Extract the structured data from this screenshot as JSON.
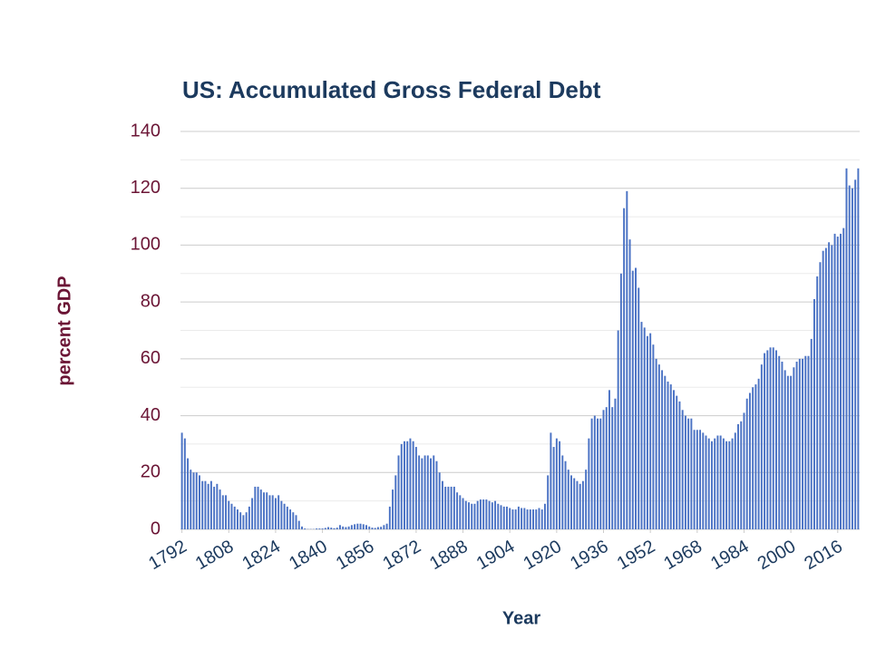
{
  "chart_data": {
    "type": "bar",
    "title": "US: Accumulated Gross Federal Debt",
    "x_label": "Year",
    "y_label": "percent GDP",
    "color": "#4a72c4",
    "x": [
      1792,
      1793,
      1794,
      1795,
      1796,
      1797,
      1798,
      1799,
      1800,
      1801,
      1802,
      1803,
      1804,
      1805,
      1806,
      1807,
      1808,
      1809,
      1810,
      1811,
      1812,
      1813,
      1814,
      1815,
      1816,
      1817,
      1818,
      1819,
      1820,
      1821,
      1822,
      1823,
      1824,
      1825,
      1826,
      1827,
      1828,
      1829,
      1830,
      1831,
      1832,
      1833,
      1834,
      1835,
      1836,
      1837,
      1838,
      1839,
      1840,
      1841,
      1842,
      1843,
      1844,
      1845,
      1846,
      1847,
      1848,
      1849,
      1850,
      1851,
      1852,
      1853,
      1854,
      1855,
      1856,
      1857,
      1858,
      1859,
      1860,
      1861,
      1862,
      1863,
      1864,
      1865,
      1866,
      1867,
      1868,
      1869,
      1870,
      1871,
      1872,
      1873,
      1874,
      1875,
      1876,
      1877,
      1878,
      1879,
      1880,
      1881,
      1882,
      1883,
      1884,
      1885,
      1886,
      1887,
      1888,
      1889,
      1890,
      1891,
      1892,
      1893,
      1894,
      1895,
      1896,
      1897,
      1898,
      1899,
      1900,
      1901,
      1902,
      1903,
      1904,
      1905,
      1906,
      1907,
      1908,
      1909,
      1910,
      1911,
      1912,
      1913,
      1914,
      1915,
      1916,
      1917,
      1918,
      1919,
      1920,
      1921,
      1922,
      1923,
      1924,
      1925,
      1926,
      1927,
      1928,
      1929,
      1930,
      1931,
      1932,
      1933,
      1934,
      1935,
      1936,
      1937,
      1938,
      1939,
      1940,
      1941,
      1942,
      1943,
      1944,
      1945,
      1946,
      1947,
      1948,
      1949,
      1950,
      1951,
      1952,
      1953,
      1954,
      1955,
      1956,
      1957,
      1958,
      1959,
      1960,
      1961,
      1962,
      1963,
      1964,
      1965,
      1966,
      1967,
      1968,
      1969,
      1970,
      1971,
      1972,
      1973,
      1974,
      1975,
      1976,
      1977,
      1978,
      1979,
      1980,
      1981,
      1982,
      1983,
      1984,
      1985,
      1986,
      1987,
      1988,
      1989,
      1990,
      1991,
      1992,
      1993,
      1994,
      1995,
      1996,
      1997,
      1998,
      1999,
      2000,
      2001,
      2002,
      2003,
      2004,
      2005,
      2006,
      2007,
      2008,
      2009,
      2010,
      2011,
      2012,
      2013,
      2014,
      2015,
      2016,
      2017,
      2018,
      2019,
      2020,
      2021,
      2022,
      2023
    ],
    "values": [
      34,
      32,
      25,
      21,
      20,
      20,
      19,
      17,
      17,
      16,
      17,
      15,
      16,
      14,
      12,
      12,
      10,
      9,
      8,
      7,
      6,
      5,
      6,
      8,
      11,
      15,
      15,
      14,
      13,
      13,
      12,
      12,
      11,
      12,
      10,
      9,
      8,
      7,
      6,
      5,
      3,
      1,
      0.3,
      0.1,
      0.1,
      0.1,
      0.3,
      0.3,
      0.3,
      0.5,
      0.8,
      0.6,
      0.4,
      0.6,
      1.5,
      1,
      0.8,
      1,
      1.5,
      1.8,
      2,
      2,
      1.8,
      1.5,
      1,
      0.6,
      0.5,
      0.8,
      0.9,
      1.5,
      2,
      8,
      14,
      19,
      26,
      30,
      31,
      31,
      32,
      31,
      29,
      26,
      25,
      26,
      26,
      25,
      26,
      24,
      20,
      17,
      15,
      15,
      15,
      15,
      13,
      12,
      11,
      10,
      9.5,
      9,
      9,
      10,
      10.5,
      10.5,
      10.5,
      10,
      9.5,
      10,
      9,
      8.5,
      8,
      8,
      7.5,
      7,
      7,
      8,
      7.5,
      7.5,
      7,
      7,
      7,
      7,
      7.5,
      7,
      9,
      19,
      34,
      29,
      32,
      31,
      26,
      24,
      21,
      19,
      18,
      17,
      16,
      17,
      21,
      32,
      39,
      40,
      39,
      39,
      42,
      43,
      49,
      43,
      46,
      70,
      90,
      113,
      119,
      102,
      91,
      92,
      85,
      73,
      71,
      68,
      69,
      65,
      60,
      58,
      56,
      54,
      52,
      51,
      49,
      47,
      45,
      42,
      40,
      39,
      39,
      35,
      35,
      35,
      34,
      33,
      32,
      31,
      32,
      33,
      33,
      32,
      31,
      31,
      32,
      34,
      37,
      38,
      41,
      46,
      48,
      50,
      51,
      53,
      58,
      62,
      63,
      64,
      64,
      63,
      61,
      59,
      56,
      54,
      54,
      57,
      59,
      60,
      60,
      61,
      61,
      67,
      81,
      89,
      94,
      98,
      99,
      101,
      100,
      104,
      103,
      104,
      106,
      127,
      121,
      120,
      123,
      127
    ],
    "xlim": [
      1791.5,
      2023.5
    ],
    "xticks": [
      1792,
      1808,
      1824,
      1840,
      1856,
      1872,
      1888,
      1904,
      1920,
      1936,
      1952,
      1968,
      1984,
      2000,
      2016
    ],
    "ylim": [
      0,
      140
    ],
    "yticks": [
      0,
      20,
      40,
      60,
      80,
      100,
      120,
      140
    ],
    "y_minor_ticks": [
      10,
      30,
      50,
      70,
      90,
      110,
      130
    ],
    "grid": true
  }
}
